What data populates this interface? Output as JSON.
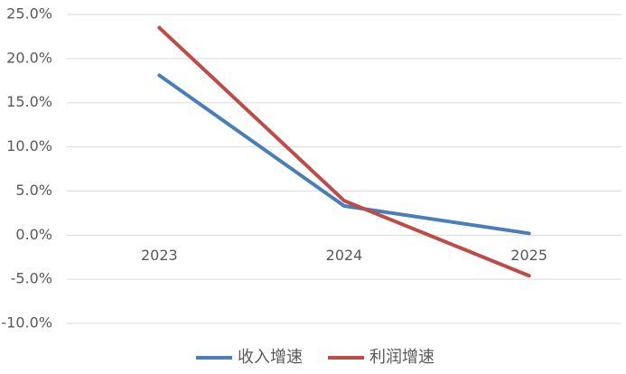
{
  "chart_data": {
    "type": "line",
    "categories": [
      "2023",
      "2024",
      "2025"
    ],
    "series": [
      {
        "name": "收入增速",
        "color": "#4a7ebb",
        "values": [
          18.1,
          3.3,
          0.2
        ]
      },
      {
        "name": "利润增速",
        "color": "#be4b48",
        "values": [
          23.5,
          3.9,
          -4.6
        ]
      }
    ],
    "ylim": [
      -10,
      25
    ],
    "yticks": [
      {
        "value": -10,
        "label": "-10.0%"
      },
      {
        "value": -5,
        "label": "-5.0%"
      },
      {
        "value": 0,
        "label": "0.0%"
      },
      {
        "value": 5,
        "label": "5.0%"
      },
      {
        "value": 10,
        "label": "10.0%"
      },
      {
        "value": 15,
        "label": "15.0%"
      },
      {
        "value": 20,
        "label": "20.0%"
      },
      {
        "value": 25,
        "label": "25.0%"
      }
    ],
    "grid": true,
    "legend": "bottom"
  }
}
